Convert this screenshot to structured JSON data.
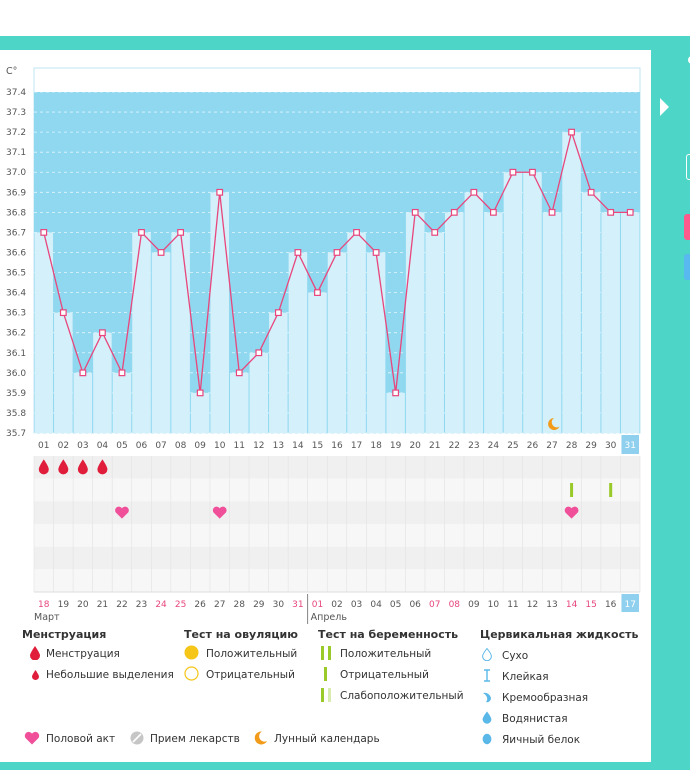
{
  "chart_data": {
    "type": "line",
    "y_unit": "C°",
    "ylim": [
      35.7,
      37.4
    ],
    "y_ticks": [
      "37.4",
      "37.3",
      "37.2",
      "37.1",
      "37.0",
      "36.9",
      "36.8",
      "36.7",
      "36.6",
      "36.5",
      "36.4",
      "36.3",
      "36.2",
      "36.1",
      "36.0",
      "35.9",
      "35.8",
      "35.7"
    ],
    "cycle_days": [
      "01",
      "02",
      "03",
      "04",
      "05",
      "06",
      "07",
      "08",
      "09",
      "10",
      "11",
      "12",
      "13",
      "14",
      "15",
      "16",
      "17",
      "18",
      "19",
      "20",
      "21",
      "22",
      "23",
      "24",
      "25",
      "26",
      "27",
      "28",
      "29",
      "30",
      "31"
    ],
    "current_cycle_day": "31",
    "temperatures": [
      36.7,
      36.3,
      36.0,
      36.2,
      36.0,
      36.7,
      36.6,
      36.7,
      35.9,
      36.9,
      36.0,
      36.1,
      36.3,
      36.6,
      36.4,
      36.6,
      36.7,
      36.6,
      35.9,
      36.8,
      36.7,
      36.8,
      36.9,
      36.8,
      37.0,
      37.0,
      36.8,
      37.2,
      36.9,
      36.8,
      36.8
    ],
    "dates": [
      "18",
      "19",
      "20",
      "21",
      "22",
      "23",
      "24",
      "25",
      "26",
      "27",
      "28",
      "29",
      "30",
      "31",
      "01",
      "02",
      "03",
      "04",
      "05",
      "06",
      "07",
      "08",
      "09",
      "10",
      "11",
      "12",
      "13",
      "14",
      "15",
      "16",
      "17"
    ],
    "weekend_date_indexes": [
      0,
      6,
      7,
      13,
      14,
      20,
      21,
      27,
      28
    ],
    "today_date": "17",
    "months": [
      "Март",
      "Апрель"
    ],
    "menstruation_days": [
      0,
      1,
      2,
      3
    ],
    "intercourse_days": [
      4,
      9,
      27
    ],
    "pregnancy_test_days": [
      27,
      29
    ],
    "moon_day": 26
  },
  "legend": {
    "menstruation": {
      "title": "Менструация",
      "items": [
        "Менструация",
        "Небольшие выделения"
      ]
    },
    "ovulation": {
      "title": "Тест на овуляцию",
      "items": [
        "Положительный",
        "Отрицательный"
      ]
    },
    "pregnancy": {
      "title": "Тест на беременность",
      "items": [
        "Положительный",
        "Отрицательный",
        "Слабоположительный"
      ]
    },
    "cervical": {
      "title": "Цервикальная жидкость",
      "items": [
        "Сухо",
        "Клейкая",
        "Кремообразная",
        "Водянистая",
        "Яичный белок"
      ]
    },
    "bottom": [
      "Половой акт",
      "Прием лекарств",
      "Лунный календарь"
    ]
  },
  "colors": {
    "band": "#8fd8f0",
    "bar": "#d4f0fb",
    "line": "#e8467c",
    "accent": "#4dd5c8",
    "weekend": "#e8467c",
    "today": "#8fd0ee",
    "green": "#9ac92a",
    "yellow": "#f5c518"
  }
}
